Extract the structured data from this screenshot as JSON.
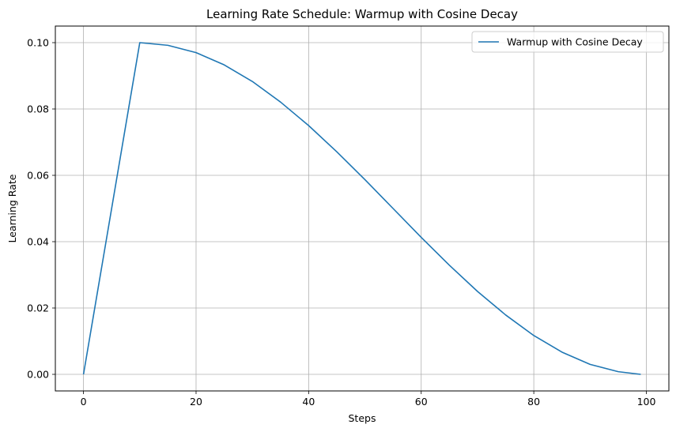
{
  "chart_data": {
    "type": "line",
    "title": "Learning Rate Schedule: Warmup with Cosine Decay",
    "xlabel": "Steps",
    "ylabel": "Learning Rate",
    "xlim": [
      -5,
      104
    ],
    "ylim": [
      -0.005,
      0.105
    ],
    "xticks": [
      0,
      20,
      40,
      60,
      80,
      100
    ],
    "xtick_labels": [
      "0",
      "20",
      "40",
      "60",
      "80",
      "100"
    ],
    "yticks": [
      0.0,
      0.02,
      0.04,
      0.06,
      0.08,
      0.1
    ],
    "ytick_labels": [
      "0.00",
      "0.02",
      "0.04",
      "0.06",
      "0.08",
      "0.10"
    ],
    "grid": true,
    "legend": {
      "placement": "upper-right"
    },
    "series": [
      {
        "name": "Warmup with Cosine Decay",
        "color": "#1f77b4",
        "x": [
          0,
          10,
          15,
          20,
          25,
          30,
          35,
          40,
          45,
          50,
          55,
          60,
          65,
          70,
          75,
          80,
          85,
          90,
          95,
          99
        ],
        "y": [
          0.0,
          0.1,
          0.0992,
          0.097,
          0.0933,
          0.0883,
          0.0821,
          0.075,
          0.0671,
          0.0587,
          0.05,
          0.0413,
          0.0329,
          0.025,
          0.0179,
          0.0117,
          0.0067,
          0.003,
          0.0008,
          0.0
        ]
      }
    ]
  }
}
